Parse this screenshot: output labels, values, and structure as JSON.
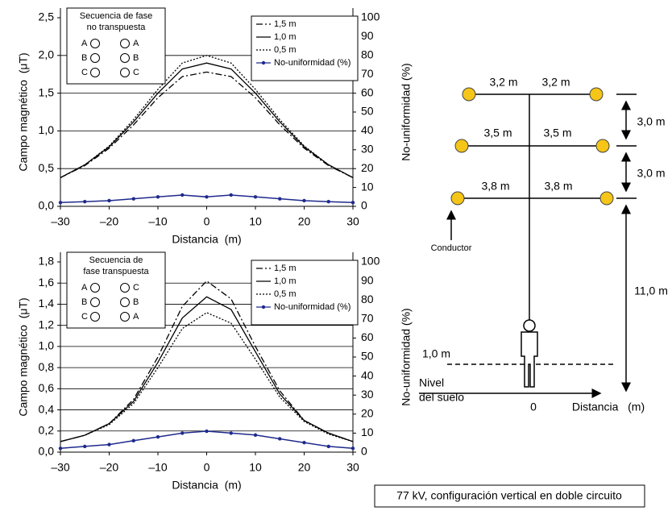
{
  "chart_data": [
    {
      "type": "line",
      "ylabel": "Campo magnético  (μT)",
      "y2label": "No-uniformidad (%)",
      "xlabel": "Distancia  (m)",
      "x": [
        -30,
        -25,
        -20,
        -15,
        -10,
        -5,
        0,
        5,
        10,
        15,
        20,
        25,
        30
      ],
      "series": [
        {
          "name": "1,5 m",
          "color": "#000000",
          "style": "dashdot",
          "values": [
            0.38,
            0.54,
            0.77,
            1.08,
            1.44,
            1.72,
            1.78,
            1.72,
            1.44,
            1.08,
            0.77,
            0.54,
            0.38
          ]
        },
        {
          "name": "1,0 m",
          "color": "#000000",
          "style": "solid",
          "values": [
            0.38,
            0.55,
            0.79,
            1.12,
            1.5,
            1.82,
            1.9,
            1.82,
            1.5,
            1.12,
            0.79,
            0.55,
            0.38
          ]
        },
        {
          "name": "0,5 m",
          "color": "#000000",
          "style": "dotted",
          "values": [
            0.38,
            0.55,
            0.8,
            1.15,
            1.55,
            1.9,
            2.0,
            1.9,
            1.55,
            1.15,
            0.8,
            0.55,
            0.38
          ]
        },
        {
          "name": "No-uniformidad (%)",
          "color": "#1f2a8c",
          "style": "markers",
          "axis": "y2",
          "values": [
            2,
            2.5,
            3,
            4,
            5,
            6,
            5,
            6,
            5,
            4,
            3,
            2.5,
            2
          ]
        }
      ],
      "xlim": [
        -30,
        30
      ],
      "xticks": [
        {
          "value": -30,
          "label": "–30"
        },
        {
          "value": -20,
          "label": "–20"
        },
        {
          "value": -10,
          "label": "–10"
        },
        0,
        10,
        20,
        30
      ],
      "ylim": [
        0,
        2.5
      ],
      "yticks": [
        {
          "value": 0,
          "label": "0,0"
        },
        {
          "value": 0.5,
          "label": "0,5"
        },
        {
          "value": 1,
          "label": "1,0"
        },
        {
          "value": 1.5,
          "label": "1,5"
        },
        {
          "value": 2,
          "label": "2,0"
        },
        {
          "value": 2.5,
          "label": "2,5"
        }
      ],
      "y2lim": [
        0,
        100
      ],
      "y2ticks": [
        0,
        10,
        20,
        30,
        40,
        50,
        60,
        70,
        80,
        90,
        100
      ],
      "grid": true,
      "legend": "upper right",
      "phase_box": {
        "title": [
          "Secuencia de fase",
          "no transpuesta"
        ],
        "rows": [
          [
            "A",
            "A"
          ],
          [
            "B",
            "B"
          ],
          [
            "C",
            "C"
          ]
        ]
      }
    },
    {
      "type": "line",
      "ylabel": "Campo magnético  (μT)",
      "y2label": "No-uniformidad (%)",
      "xlabel": "Distancia  (m)",
      "x": [
        -30,
        -25,
        -20,
        -15,
        -10,
        -5,
        0,
        5,
        10,
        15,
        20,
        25,
        30
      ],
      "series": [
        {
          "name": "1,5 m",
          "color": "#000000",
          "style": "dashdot",
          "values": [
            0.1,
            0.16,
            0.27,
            0.5,
            0.9,
            1.38,
            1.62,
            1.45,
            1.0,
            0.58,
            0.3,
            0.18,
            0.1
          ]
        },
        {
          "name": "1,0 m",
          "color": "#000000",
          "style": "solid",
          "values": [
            0.1,
            0.16,
            0.27,
            0.48,
            0.85,
            1.27,
            1.47,
            1.35,
            0.95,
            0.55,
            0.3,
            0.18,
            0.1
          ]
        },
        {
          "name": "0,5 m",
          "color": "#000000",
          "style": "dotted",
          "values": [
            0.1,
            0.16,
            0.26,
            0.46,
            0.8,
            1.17,
            1.32,
            1.22,
            0.88,
            0.52,
            0.29,
            0.17,
            0.1
          ]
        },
        {
          "name": "No-uniformidad (%)",
          "color": "#1f2a8c",
          "style": "markers",
          "axis": "y2",
          "values": [
            2,
            3,
            4,
            6,
            8,
            10,
            11,
            10,
            9,
            7,
            5,
            3,
            2
          ]
        }
      ],
      "xlim": [
        -30,
        30
      ],
      "xticks": [
        {
          "value": -30,
          "label": "–30"
        },
        {
          "value": -20,
          "label": "–20"
        },
        {
          "value": -10,
          "label": "–10"
        },
        0,
        10,
        20,
        30
      ],
      "ylim": [
        0,
        1.8
      ],
      "yticks": [
        {
          "value": 0,
          "label": "0,0"
        },
        {
          "value": 0.2,
          "label": "0,2"
        },
        {
          "value": 0.4,
          "label": "0,4"
        },
        {
          "value": 0.6,
          "label": "0,6"
        },
        {
          "value": 0.8,
          "label": "0,8"
        },
        {
          "value": 1,
          "label": "1,0"
        },
        {
          "value": 1.2,
          "label": "1,2"
        },
        {
          "value": 1.4,
          "label": "1,4"
        },
        {
          "value": 1.6,
          "label": "1,6"
        },
        {
          "value": 1.8,
          "label": "1,8"
        }
      ],
      "y2lim": [
        0,
        100
      ],
      "y2ticks": [
        0,
        10,
        20,
        30,
        40,
        50,
        60,
        70,
        80,
        90,
        100
      ],
      "grid": true,
      "legend": "upper right",
      "phase_box": {
        "title": [
          "Secuencia de",
          "fase transpuesta"
        ],
        "rows": [
          [
            "A",
            "C"
          ],
          [
            "B",
            "B"
          ],
          [
            "C",
            "A"
          ]
        ]
      }
    }
  ],
  "diagram": {
    "top_spans": [
      "3,2 m",
      "3,2 m"
    ],
    "middle_spans": [
      "3,5 m",
      "3,5 m"
    ],
    "bottom_spans": [
      "3,8 m",
      "3,8 m"
    ],
    "vertical_gaps": [
      "3,0 m",
      "3,0 m"
    ],
    "height": "11,0 m",
    "conductor": "Conductor",
    "person_height": "1,0 m",
    "ground": [
      "Nivel",
      "del suelo"
    ],
    "origin": "0",
    "axis": "Distancia   (m)",
    "caption": "77 kV, configuración vertical en doble circuito"
  }
}
